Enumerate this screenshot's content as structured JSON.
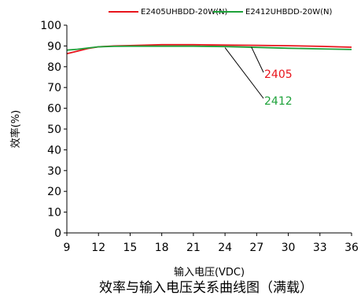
{
  "chart_data": {
    "type": "line",
    "title": "效率与输入电压关系曲线图（满载）",
    "xlabel": "输入电压(VDC)",
    "ylabel": "效率(%)",
    "xlim": [
      9,
      36
    ],
    "ylim": [
      0,
      100
    ],
    "xticks": [
      "9",
      "12",
      "15",
      "18",
      "21",
      "24",
      "27",
      "30",
      "33",
      "36"
    ],
    "yticks": [
      "0",
      "10",
      "20",
      "30",
      "40",
      "50",
      "60",
      "70",
      "80",
      "90",
      "100"
    ],
    "grid": false,
    "legend_position": "top-right",
    "series": [
      {
        "name": "E2405UHBDD-20W(N)",
        "color": "#e8141c",
        "x": [
          9,
          10,
          11,
          12,
          13.5,
          15,
          18,
          21,
          24,
          27,
          30,
          33,
          36
        ],
        "y": [
          86.3,
          87.5,
          88.8,
          89.6,
          90,
          90.2,
          90.6,
          90.6,
          90.4,
          90.3,
          90.1,
          89.8,
          89.4
        ]
      },
      {
        "name": "E2412UHBDD-20W(N)",
        "color": "#1ea23a",
        "x": [
          9,
          10,
          11,
          12,
          13.5,
          15,
          18,
          21,
          24,
          27,
          30,
          33,
          36
        ],
        "y": [
          88.0,
          88.4,
          89.0,
          89.6,
          89.8,
          89.9,
          89.9,
          89.9,
          89.7,
          89.3,
          88.9,
          88.6,
          88.3
        ]
      }
    ],
    "annotations": [
      {
        "text": "2405",
        "color": "#e8141c",
        "anchor_x": 26.5,
        "anchor_y": 89.5
      },
      {
        "text": "2412",
        "color": "#1ea23a",
        "anchor_x": 24,
        "anchor_y": 89.2
      }
    ]
  }
}
